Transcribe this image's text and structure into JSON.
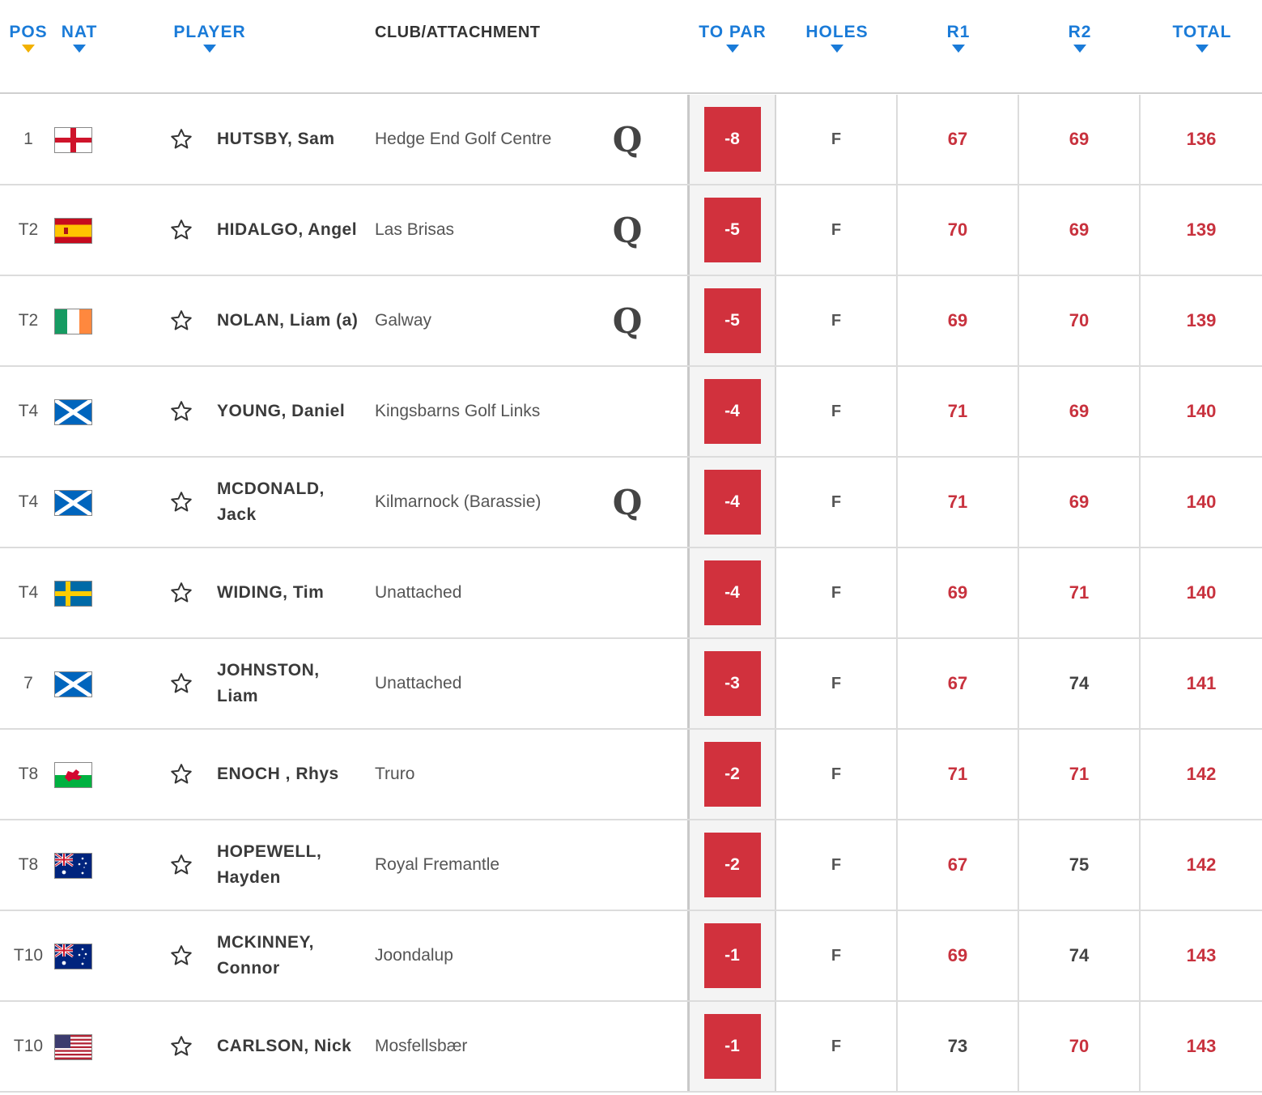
{
  "header": {
    "pos": "POS",
    "nat": "NAT",
    "player": "PLAYER",
    "club": "CLUB/ATTACHMENT",
    "to_par": "TO PAR",
    "holes": "HOLES",
    "r1": "R1",
    "r2": "R2",
    "total": "TOTAL"
  },
  "colors": {
    "accent": "#1a7bd8",
    "sort_active": "#f2b100",
    "under_par": "#c8323e"
  },
  "rows": [
    {
      "pos": "1",
      "nat": "england",
      "player": "HUTSBY, Sam",
      "club": "Hedge End Golf Centre",
      "qualified": "Q",
      "to_par": "-8",
      "holes": "F",
      "r1": "67",
      "r2": "69",
      "total": "136",
      "r1_under": true,
      "r2_under": true
    },
    {
      "pos": "T2",
      "nat": "spain",
      "player": "HIDALGO, Angel",
      "club": "Las Brisas",
      "qualified": "Q",
      "to_par": "-5",
      "holes": "F",
      "r1": "70",
      "r2": "69",
      "total": "139",
      "r1_under": true,
      "r2_under": true
    },
    {
      "pos": "T2",
      "nat": "ireland",
      "player": "NOLAN, Liam (a)",
      "club": "Galway",
      "qualified": "Q",
      "to_par": "-5",
      "holes": "F",
      "r1": "69",
      "r2": "70",
      "total": "139",
      "r1_under": true,
      "r2_under": true
    },
    {
      "pos": "T4",
      "nat": "scotland",
      "player": "YOUNG, Daniel",
      "club": "Kingsbarns Golf Links",
      "qualified": "",
      "to_par": "-4",
      "holes": "F",
      "r1": "71",
      "r2": "69",
      "total": "140",
      "r1_under": true,
      "r2_under": true
    },
    {
      "pos": "T4",
      "nat": "scotland",
      "player": "MCDONALD, Jack",
      "club": "Kilmarnock (Barassie)",
      "qualified": "Q",
      "to_par": "-4",
      "holes": "F",
      "r1": "71",
      "r2": "69",
      "total": "140",
      "r1_under": true,
      "r2_under": true
    },
    {
      "pos": "T4",
      "nat": "sweden",
      "player": "WIDING, Tim",
      "club": "Unattached",
      "qualified": "",
      "to_par": "-4",
      "holes": "F",
      "r1": "69",
      "r2": "71",
      "total": "140",
      "r1_under": true,
      "r2_under": true
    },
    {
      "pos": "7",
      "nat": "scotland",
      "player": "JOHNSTON, Liam",
      "club": "Unattached",
      "qualified": "",
      "to_par": "-3",
      "holes": "F",
      "r1": "67",
      "r2": "74",
      "total": "141",
      "r1_under": true,
      "r2_under": false
    },
    {
      "pos": "T8",
      "nat": "wales",
      "player": "ENOCH , Rhys",
      "club": "Truro",
      "qualified": "",
      "to_par": "-2",
      "holes": "F",
      "r1": "71",
      "r2": "71",
      "total": "142",
      "r1_under": true,
      "r2_under": true
    },
    {
      "pos": "T8",
      "nat": "australia",
      "player": "HOPEWELL, Hayden",
      "club": "Royal Fremantle",
      "qualified": "",
      "to_par": "-2",
      "holes": "F",
      "r1": "67",
      "r2": "75",
      "total": "142",
      "r1_under": true,
      "r2_under": false
    },
    {
      "pos": "T10",
      "nat": "australia",
      "player": "MCKINNEY, Connor",
      "club": "Joondalup",
      "qualified": "",
      "to_par": "-1",
      "holes": "F",
      "r1": "69",
      "r2": "74",
      "total": "143",
      "r1_under": true,
      "r2_under": false
    },
    {
      "pos": "T10",
      "nat": "usa",
      "player": "CARLSON, Nick",
      "club": "Mosfellsbær",
      "qualified": "",
      "to_par": "-1",
      "holes": "F",
      "r1": "73",
      "r2": "70",
      "total": "143",
      "r1_under": false,
      "r2_under": true
    }
  ]
}
